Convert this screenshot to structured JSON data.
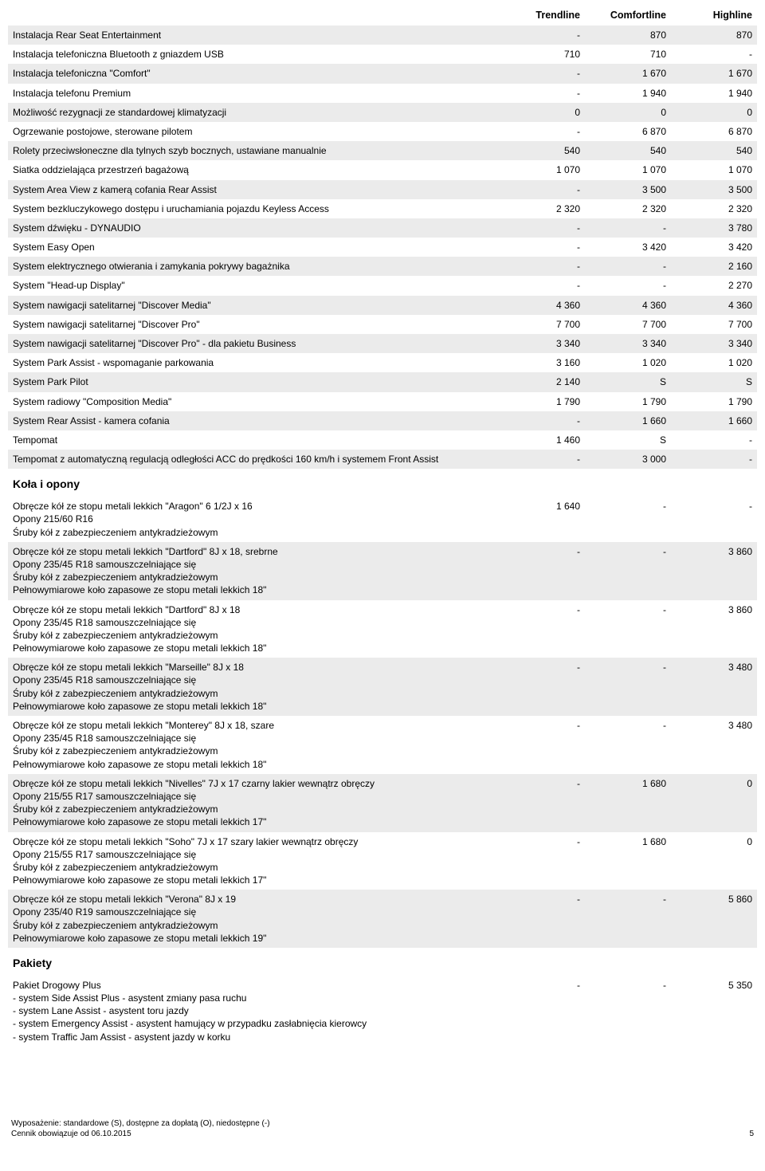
{
  "columns": [
    "Trendline",
    "Comfortline",
    "Highline"
  ],
  "rows": [
    {
      "label": "Instalacja Rear Seat Entertainment",
      "vals": [
        "-",
        "870",
        "870"
      ],
      "stripe": true
    },
    {
      "label": "Instalacja telefoniczna Bluetooth z gniazdem USB",
      "vals": [
        "710",
        "710",
        "-"
      ],
      "stripe": false
    },
    {
      "label": "Instalacja telefoniczna \"Comfort\"",
      "vals": [
        "-",
        "1 670",
        "1 670"
      ],
      "stripe": true
    },
    {
      "label": "Instalacja telefonu Premium",
      "vals": [
        "-",
        "1 940",
        "1 940"
      ],
      "stripe": false
    },
    {
      "label": "Możliwość rezygnacji ze standardowej klimatyzacji",
      "vals": [
        "0",
        "0",
        "0"
      ],
      "stripe": true
    },
    {
      "label": "Ogrzewanie postojowe, sterowane pilotem",
      "vals": [
        "-",
        "6 870",
        "6 870"
      ],
      "stripe": false
    },
    {
      "label": "Rolety przeciwsłoneczne dla tylnych szyb bocznych, ustawiane manualnie",
      "vals": [
        "540",
        "540",
        "540"
      ],
      "stripe": true
    },
    {
      "label": "Siatka oddzielająca przestrzeń bagażową",
      "vals": [
        "1 070",
        "1 070",
        "1 070"
      ],
      "stripe": false
    },
    {
      "label": "System Area View z kamerą cofania Rear Assist",
      "vals": [
        "-",
        "3 500",
        "3 500"
      ],
      "stripe": true
    },
    {
      "label": "System bezkluczykowego dostępu i uruchamiania pojazdu Keyless Access",
      "vals": [
        "2 320",
        "2 320",
        "2 320"
      ],
      "stripe": false
    },
    {
      "label": "System dźwięku - DYNAUDIO",
      "vals": [
        "-",
        "-",
        "3 780"
      ],
      "stripe": true
    },
    {
      "label": "System Easy Open",
      "vals": [
        "-",
        "3 420",
        "3 420"
      ],
      "stripe": false
    },
    {
      "label": "System elektrycznego otwierania i zamykania pokrywy bagażnika",
      "vals": [
        "-",
        "-",
        "2 160"
      ],
      "stripe": true
    },
    {
      "label": "System \"Head-up Display\"",
      "vals": [
        "-",
        "-",
        "2 270"
      ],
      "stripe": false
    },
    {
      "label": "System nawigacji satelitarnej \"Discover Media\"",
      "vals": [
        "4 360",
        "4 360",
        "4 360"
      ],
      "stripe": true
    },
    {
      "label": "System nawigacji satelitarnej \"Discover Pro\"",
      "vals": [
        "7 700",
        "7 700",
        "7 700"
      ],
      "stripe": false
    },
    {
      "label": "System nawigacji satelitarnej \"Discover Pro\" - dla pakietu Business",
      "vals": [
        "3 340",
        "3 340",
        "3 340"
      ],
      "stripe": true
    },
    {
      "label": "System Park Assist - wspomaganie parkowania",
      "vals": [
        "3 160",
        "1 020",
        "1 020"
      ],
      "stripe": false
    },
    {
      "label": "System Park Pilot",
      "vals": [
        "2 140",
        "S",
        "S"
      ],
      "stripe": true
    },
    {
      "label": "System radiowy \"Composition Media\"",
      "vals": [
        "1 790",
        "1 790",
        "1 790"
      ],
      "stripe": false
    },
    {
      "label": "System Rear Assist - kamera cofania",
      "vals": [
        "-",
        "1 660",
        "1 660"
      ],
      "stripe": true
    },
    {
      "label": "Tempomat",
      "vals": [
        "1 460",
        "S",
        "-"
      ],
      "stripe": false
    },
    {
      "label": "Tempomat z automatyczną regulacją odległości ACC do prędkości 160 km/h i systemem Front Assist",
      "vals": [
        "-",
        "3 000",
        "-"
      ],
      "stripe": true
    },
    {
      "section": "Koła i opony"
    },
    {
      "label": "Obręcze kół ze stopu metali lekkich \"Aragon\" 6 1/2J x 16",
      "sublines": [
        "Opony 215/60 R16",
        "Śruby kół z zabezpieczeniem antykradzieżowym"
      ],
      "vals": [
        "1 640",
        "-",
        "-"
      ],
      "stripe": false
    },
    {
      "label": "Obręcze kół ze stopu metali lekkich \"Dartford\" 8J x 18, srebrne",
      "sublines": [
        "Opony 235/45 R18 samouszczelniające się",
        "Śruby kół z zabezpieczeniem antykradzieżowym",
        "Pełnowymiarowe koło zapasowe ze stopu metali lekkich 18\""
      ],
      "vals": [
        "-",
        "-",
        "3 860"
      ],
      "stripe": true
    },
    {
      "label": "Obręcze kół ze stopu metali lekkich \"Dartford\" 8J x 18",
      "sublines": [
        "Opony 235/45 R18 samouszczelniające się",
        "Śruby kół z zabezpieczeniem antykradzieżowym",
        "Pełnowymiarowe koło zapasowe ze stopu metali lekkich 18\""
      ],
      "vals": [
        "-",
        "-",
        "3 860"
      ],
      "stripe": false
    },
    {
      "label": "Obręcze kół ze stopu metali lekkich \"Marseille\" 8J x 18",
      "sublines": [
        "Opony 235/45 R18 samouszczelniające się",
        "Śruby kół z zabezpieczeniem antykradzieżowym",
        "Pełnowymiarowe koło zapasowe ze stopu metali lekkich 18\""
      ],
      "vals": [
        "-",
        "-",
        "3 480"
      ],
      "stripe": true
    },
    {
      "label": "Obręcze kół ze stopu metali lekkich \"Monterey\" 8J x 18, szare",
      "sublines": [
        "Opony 235/45 R18 samouszczelniające się",
        "Śruby kół z zabezpieczeniem antykradzieżowym",
        "Pełnowymiarowe koło zapasowe ze stopu metali lekkich 18\""
      ],
      "vals": [
        "-",
        "-",
        "3 480"
      ],
      "stripe": false
    },
    {
      "label": "Obręcze kół ze stopu metali lekkich \"Nivelles\" 7J x 17 czarny lakier wewnątrz obręczy",
      "sublines": [
        "Opony 215/55 R17 samouszczelniające się",
        "Śruby kół z zabezpieczeniem antykradzieżowym",
        "Pełnowymiarowe koło zapasowe ze stopu metali lekkich 17\""
      ],
      "vals": [
        "-",
        "1 680",
        "0"
      ],
      "stripe": true
    },
    {
      "label": "Obręcze kół ze stopu metali lekkich \"Soho\" 7J x 17 szary lakier wewnątrz obręczy",
      "sublines": [
        "Opony 215/55 R17 samouszczelniające się",
        "Śruby kół z zabezpieczeniem antykradzieżowym",
        "Pełnowymiarowe koło zapasowe ze stopu metali lekkich 17\""
      ],
      "vals": [
        "-",
        "1 680",
        "0"
      ],
      "stripe": false
    },
    {
      "label": "Obręcze kół ze stopu metali lekkich \"Verona\" 8J x 19",
      "sublines": [
        "Opony 235/40 R19 samouszczelniające się",
        "Śruby kół z zabezpieczeniem antykradzieżowym",
        "Pełnowymiarowe koło zapasowe ze stopu metali lekkich 19\""
      ],
      "vals": [
        "-",
        "-",
        "5 860"
      ],
      "stripe": true
    },
    {
      "section": "Pakiety"
    },
    {
      "label": "Pakiet Drogowy Plus",
      "sublines": [
        "- system Side Assist Plus - asystent zmiany pasa ruchu",
        "- system Lane Assist - asystent toru jazdy",
        "- system Emergency Assist - asystent hamujący w przypadku zasłabnięcia kierowcy",
        "- system Traffic Jam Assist - asystent jazdy w korku"
      ],
      "vals": [
        "-",
        "-",
        "5 350"
      ],
      "stripe": false
    }
  ],
  "footer": {
    "line1": "Wyposażenie: standardowe (S), dostępne za dopłatą (O), niedostępne (-)",
    "line2": "Cennik obowiązuje od 06.10.2015",
    "page": "5"
  },
  "style": {
    "stripe_bg": "#ebebeb",
    "text_color": "#000000",
    "header_fontsize": 12.5,
    "body_fontsize": 12,
    "section_fontsize": 14
  }
}
